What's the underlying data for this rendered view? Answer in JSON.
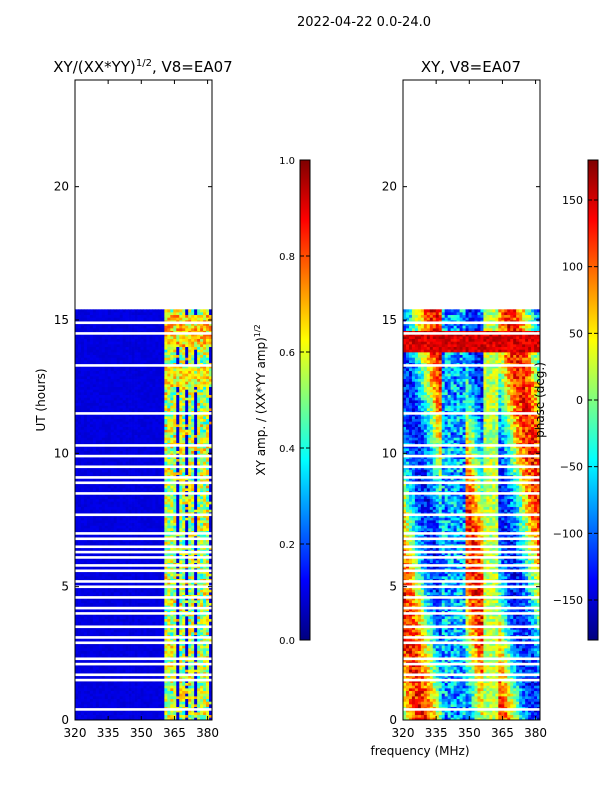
{
  "suptitle": "2022-04-22 0.0-24.0",
  "colors": {
    "jet": [
      "#00007f",
      "#0000ff",
      "#007fff",
      "#00ffff",
      "#7fff7f",
      "#ffff00",
      "#ff7f00",
      "#ff0000",
      "#7f0000"
    ],
    "axes": "#000000",
    "gap": "#ffffff"
  },
  "chart_data": [
    {
      "type": "heatmap",
      "title_base": "XY/(XX*YY)",
      "title_exp": "1/2",
      "title_tail": ", V8=EA07",
      "xlabel": "",
      "ylabel": "UT (hours)",
      "xlim": [
        320,
        382
      ],
      "ylim": [
        0,
        24
      ],
      "xticks": [
        320,
        335,
        350,
        365,
        380
      ],
      "yticks": [
        0,
        5,
        10,
        15,
        20
      ],
      "data_extent_hours": [
        0,
        15.4
      ],
      "colorbar": {
        "label_base": "XY amp. / (XX*YY amp)",
        "label_exp": "1/2",
        "range": [
          0.0,
          1.0
        ],
        "ticks": [
          "0.0",
          "0.2",
          "0.4",
          "0.6",
          "0.8",
          "1.0"
        ],
        "tick_values": [
          0.0,
          0.2,
          0.4,
          0.6,
          0.8,
          1.0
        ]
      }
    },
    {
      "type": "heatmap",
      "title": "XY, V8=EA07",
      "xlabel": "frequency (MHz)",
      "ylabel": "",
      "xlim": [
        320,
        382
      ],
      "ylim": [
        0,
        24
      ],
      "xticks": [
        320,
        335,
        350,
        365,
        380
      ],
      "yticks": [
        0,
        5,
        10,
        15,
        20
      ],
      "data_extent_hours": [
        0,
        15.4
      ],
      "colorbar": {
        "label": "phase (deg.)",
        "range": [
          -180,
          180
        ],
        "ticks": [
          "150",
          "100",
          "50",
          "0",
          "−50",
          "−100",
          "−150"
        ],
        "tick_values": [
          150,
          100,
          50,
          0,
          -50,
          -100,
          -150
        ]
      }
    }
  ],
  "flagged_hours": [
    0.4,
    1.5,
    1.7,
    2.1,
    2.3,
    2.9,
    3.1,
    3.5,
    4.0,
    4.2,
    4.6,
    5.0,
    5.2,
    5.6,
    5.8,
    6.1,
    6.3,
    6.5,
    6.8,
    7.0,
    7.7,
    8.5,
    8.9,
    9.1,
    9.5,
    9.9,
    10.3,
    11.5,
    13.3,
    14.5,
    14.9
  ]
}
